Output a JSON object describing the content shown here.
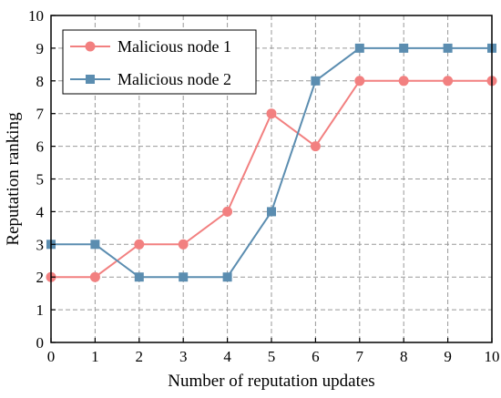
{
  "chart_data": {
    "type": "line",
    "title": "",
    "xlabel": "Number of reputation updates",
    "ylabel": "Reputation ranking",
    "x": [
      0,
      1,
      2,
      3,
      4,
      5,
      6,
      7,
      8,
      9,
      10
    ],
    "xlim": [
      0,
      10
    ],
    "ylim": [
      0,
      10
    ],
    "xticks": [
      "0",
      "1",
      "2",
      "3",
      "4",
      "5",
      "6",
      "7",
      "8",
      "9",
      "10"
    ],
    "yticks": [
      "0",
      "1",
      "2",
      "3",
      "4",
      "5",
      "6",
      "7",
      "8",
      "9",
      "10"
    ],
    "grid": true,
    "grid_style": "dashed",
    "legend_position": "top-left",
    "series": [
      {
        "name": "Malicious node 1",
        "marker": "circle",
        "color": "#F28080",
        "values": [
          2,
          2,
          3,
          3,
          4,
          7,
          6,
          8,
          8,
          8,
          8
        ]
      },
      {
        "name": "Malicious node 2",
        "marker": "square",
        "color": "#5B8DB0",
        "values": [
          3,
          3,
          2,
          2,
          2,
          4,
          8,
          9,
          9,
          9,
          9
        ]
      }
    ]
  }
}
